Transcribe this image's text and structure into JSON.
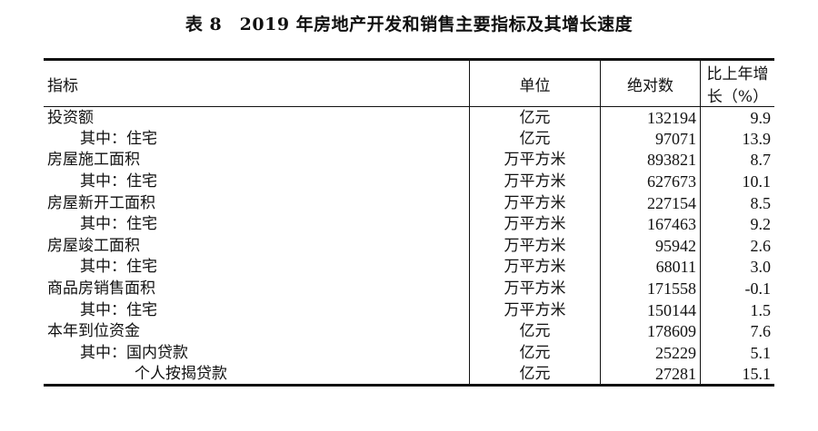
{
  "title": "表 8　2019 年房地产开发和销售主要指标及其增长速度",
  "headers": [
    "指标",
    "单位",
    "绝对数",
    "比上年增长（%）"
  ],
  "rows": [
    {
      "indicator": "投资额",
      "level": 0,
      "unit": "亿元",
      "value": "132194",
      "growth": "9.9"
    },
    {
      "indicator": "其中：住宅",
      "level": 1,
      "unit": "亿元",
      "value": "97071",
      "growth": "13.9"
    },
    {
      "indicator": "房屋施工面积",
      "level": 0,
      "unit": "万平方米",
      "value": "893821",
      "growth": "8.7"
    },
    {
      "indicator": "其中：住宅",
      "level": 1,
      "unit": "万平方米",
      "value": "627673",
      "growth": "10.1"
    },
    {
      "indicator": "房屋新开工面积",
      "level": 0,
      "unit": "万平方米",
      "value": "227154",
      "growth": "8.5"
    },
    {
      "indicator": "其中：住宅",
      "level": 1,
      "unit": "万平方米",
      "value": "167463",
      "growth": "9.2"
    },
    {
      "indicator": "房屋竣工面积",
      "level": 0,
      "unit": "万平方米",
      "value": "95942",
      "growth": "2.6"
    },
    {
      "indicator": "其中：住宅",
      "level": 1,
      "unit": "万平方米",
      "value": "68011",
      "growth": "3.0"
    },
    {
      "indicator": "商品房销售面积",
      "level": 0,
      "unit": "万平方米",
      "value": "171558",
      "growth": "-0.1"
    },
    {
      "indicator": "其中：住宅",
      "level": 1,
      "unit": "万平方米",
      "value": "150144",
      "growth": "1.5"
    },
    {
      "indicator": "本年到位资金",
      "level": 0,
      "unit": "亿元",
      "value": "178609",
      "growth": "7.6"
    },
    {
      "indicator": "其中：国内贷款",
      "level": 1,
      "unit": "亿元",
      "value": "25229",
      "growth": "5.1"
    },
    {
      "indicator": "个人按揭贷款",
      "level": 2,
      "unit": "亿元",
      "value": "27281",
      "growth": "15.1"
    }
  ]
}
